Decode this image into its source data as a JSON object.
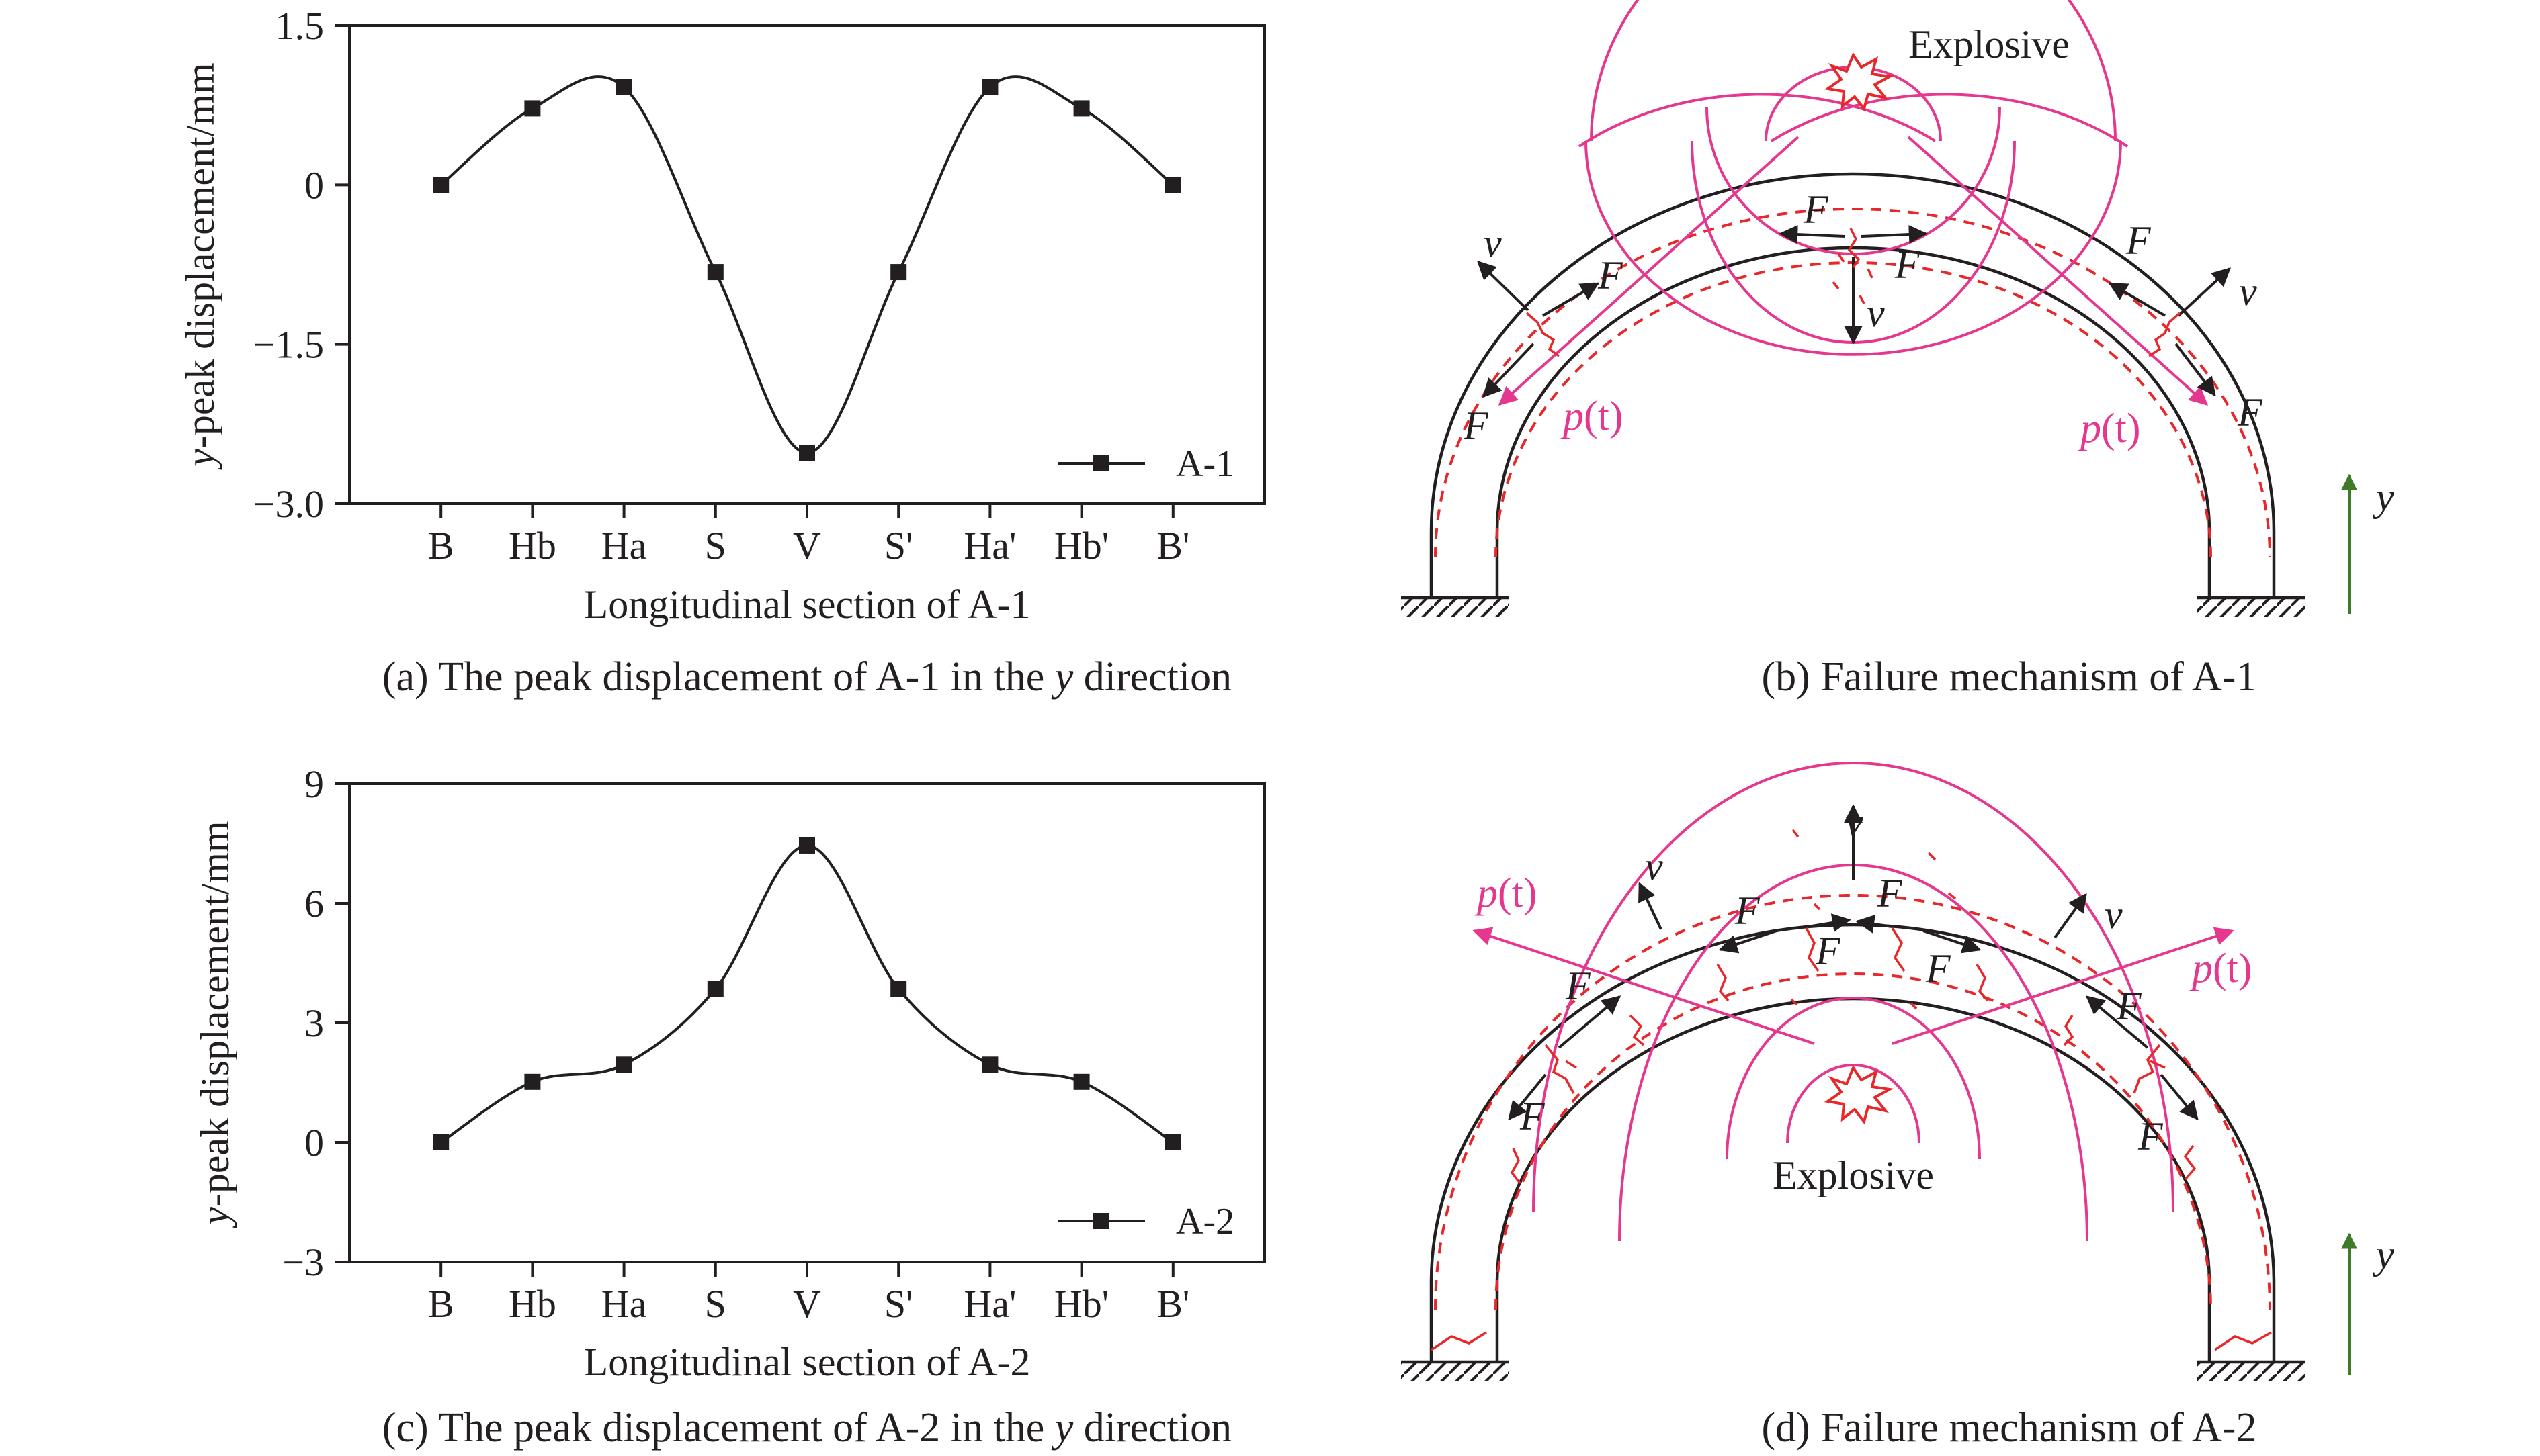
{
  "chart_data": [
    {
      "type": "line",
      "panel_caption": "(a) The peak displacement of A-1 in the ",
      "caption_italic": "y",
      "caption_tail": " direction",
      "xlabel": "Longitudinal section of A-1",
      "ylabel_italic": "y",
      "ylabel": "-peak displacement/mm",
      "categories": [
        "B",
        "Hb",
        "Ha",
        "S",
        "V",
        "S'",
        "Ha'",
        "Hb'",
        "B'"
      ],
      "yticks": [
        "1.5",
        "0",
        "−1.5",
        "−3.0"
      ],
      "ylim": [
        -3.0,
        1.5
      ],
      "grid": false,
      "legend_position": "bottom-right",
      "series": [
        {
          "name": "A-1",
          "values": [
            0,
            0.72,
            0.92,
            -0.82,
            -2.52,
            -0.82,
            0.92,
            0.72,
            0
          ]
        }
      ]
    },
    {
      "type": "line",
      "panel_caption": "(c) The peak displacement of A-2 in the ",
      "caption_italic": "y",
      "caption_tail": " direction",
      "xlabel": "Longitudinal section of A-2",
      "ylabel_italic": "y",
      "ylabel": "-peak displacement/mm",
      "categories": [
        "B",
        "Hb",
        "Ha",
        "S",
        "V",
        "S'",
        "Ha'",
        "Hb'",
        "B'"
      ],
      "yticks": [
        "9",
        "6",
        "3",
        "0",
        "−3"
      ],
      "ylim": [
        -3,
        9
      ],
      "grid": false,
      "legend_position": "bottom-right",
      "series": [
        {
          "name": "A-2",
          "values": [
            0,
            1.52,
            1.95,
            3.85,
            7.45,
            3.85,
            1.95,
            1.52,
            0
          ]
        }
      ]
    }
  ],
  "diagrams": {
    "b": {
      "caption": "(b) Failure mechanism of A-1",
      "explosive_label": "Explosive",
      "pressure_p": "p",
      "pressure_t": "(t)",
      "force_label": "F",
      "velocity_label": "v",
      "axis_label": "y"
    },
    "d": {
      "caption": "(d) Failure mechanism of A-2",
      "explosive_label": "Explosive",
      "pressure_p": "p",
      "pressure_t": "(t)",
      "force_label": "F",
      "velocity_label": "v",
      "axis_label": "y"
    }
  },
  "colors": {
    "ink": "#231f20",
    "pressure_wave": "#e6378e",
    "damage": "#e8272a",
    "y_axis_arrow": "#3f7a2a"
  }
}
